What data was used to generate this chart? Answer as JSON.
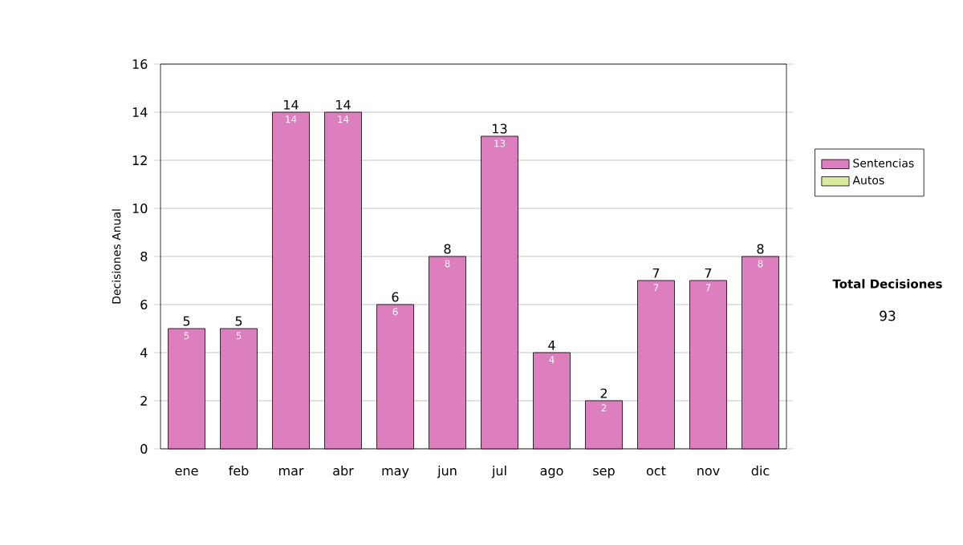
{
  "chart_data": {
    "type": "bar",
    "ylabel": "Decisiones Anual",
    "categories": [
      "ene",
      "feb",
      "mar",
      "abr",
      "may",
      "jun",
      "jul",
      "ago",
      "sep",
      "oct",
      "nov",
      "dic"
    ],
    "series": [
      {
        "name": "Sentencias",
        "color": "#dd7fbf",
        "values": [
          5,
          5,
          14,
          14,
          6,
          8,
          13,
          4,
          2,
          7,
          7,
          8
        ]
      },
      {
        "name": "Autos",
        "color": "#d8ec9c",
        "values": [
          null,
          null,
          null,
          null,
          null,
          null,
          null,
          null,
          null,
          null,
          null,
          null
        ]
      }
    ],
    "totals": [
      "5",
      "5",
      "14",
      "14",
      "6",
      "8",
      "13",
      "4",
      "2",
      "7",
      "7",
      "8"
    ],
    "data_labels": true,
    "ylim": [
      0,
      16
    ],
    "yticks": [
      0,
      2,
      4,
      6,
      8,
      10,
      12,
      14,
      16
    ],
    "grid": "y",
    "legend": "right",
    "annotations": [
      "Total Decisiones",
      "93"
    ]
  }
}
